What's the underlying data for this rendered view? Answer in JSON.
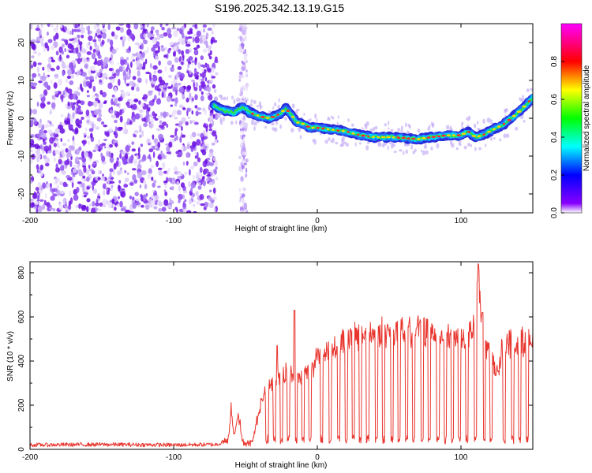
{
  "title": "S196.2025.342.13.19.G15",
  "chart_data": [
    {
      "type": "heatmap",
      "xlabel": "Height of straight line (km)",
      "ylabel": "Frequency (Hz)",
      "xlim": [
        -200,
        150
      ],
      "ylim": [
        -25,
        25
      ],
      "xticks": [
        "-200",
        "-100",
        "0",
        "100"
      ],
      "yticks": [
        "20",
        "10",
        "0",
        "-10",
        "-20"
      ],
      "colorbar": {
        "label": "Normalized spectral amplitude",
        "range": [
          0,
          1
        ],
        "ticks": [
          "0.0",
          "0.2",
          "0.4",
          "0.6",
          "0.8"
        ],
        "colors": [
          "#ffffff",
          "#8800ff",
          "#0000ff",
          "#00ffff",
          "#00ff00",
          "#ffff00",
          "#ff0000",
          "#ff00ff"
        ]
      },
      "noise_region_x": [
        -200,
        -70
      ],
      "noise_band_x": [
        -54,
        -49
      ],
      "ridge": {
        "x": [
          -72,
          -65,
          -58,
          -52,
          -47,
          -40,
          -33,
          -27,
          -22,
          -18,
          -15,
          -10,
          -5,
          0,
          10,
          20,
          30,
          40,
          50,
          60,
          70,
          80,
          90,
          100,
          105,
          110,
          115,
          120,
          130,
          140,
          150
        ],
        "y": [
          3.5,
          2,
          1.5,
          3,
          1.5,
          0.5,
          0,
          1,
          2.5,
          1,
          -1,
          -1.5,
          -2.5,
          -2.5,
          -3,
          -3.5,
          -4.5,
          -5,
          -5,
          -5.2,
          -5.5,
          -5,
          -4.5,
          -4.5,
          -3.5,
          -5,
          -4.5,
          -3.5,
          -1.5,
          1.5,
          5.5
        ]
      }
    },
    {
      "type": "line",
      "xlabel": "Height of straight line (km)",
      "ylabel": "SNR (10 * v/v)",
      "xlim": [
        -200,
        150
      ],
      "ylim": [
        0,
        850
      ],
      "xticks": [
        "-200",
        "-100",
        "0",
        "100"
      ],
      "yticks": [
        "800",
        "600",
        "400",
        "200",
        "0"
      ],
      "color": "#e8352e",
      "series": [
        {
          "name": "SNR",
          "x": [
            -200,
            -150,
            -100,
            -70,
            -62,
            -60,
            -58,
            -55,
            -52,
            -48,
            -45,
            -40,
            -35,
            -30,
            -25,
            -20,
            -15,
            -10,
            -5,
            0,
            5,
            10,
            20,
            30,
            40,
            50,
            60,
            70,
            80,
            90,
            100,
            105,
            110,
            112,
            115,
            120,
            125,
            130,
            140,
            150
          ],
          "y": [
            20,
            22,
            20,
            22,
            40,
            190,
            60,
            170,
            30,
            25,
            30,
            200,
            270,
            320,
            330,
            350,
            310,
            330,
            360,
            420,
            440,
            460,
            490,
            520,
            530,
            530,
            535,
            540,
            530,
            520,
            500,
            510,
            560,
            780,
            520,
            430,
            350,
            480,
            490,
            480
          ]
        }
      ],
      "dropouts": [
        -35,
        -30,
        -25,
        -20,
        -15,
        -10,
        -5,
        3,
        9,
        15,
        20,
        25,
        30,
        35,
        41,
        46,
        52,
        57,
        62,
        67,
        73,
        78,
        84,
        89,
        94,
        99,
        104,
        110,
        116,
        121,
        130,
        136,
        141,
        146
      ],
      "spikes": [
        {
          "x": -28,
          "y": 470
        },
        {
          "x": -16,
          "y": 630
        },
        {
          "x": 112,
          "y": 840
        },
        {
          "x": 115,
          "y": 620
        }
      ]
    }
  ]
}
